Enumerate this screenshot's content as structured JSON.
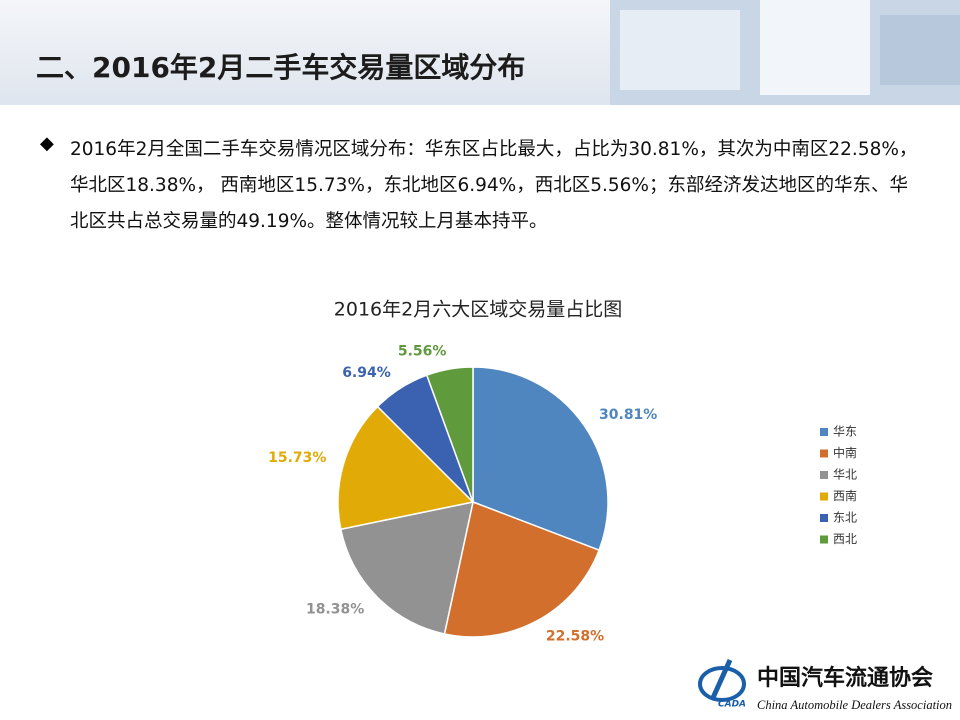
{
  "header": {
    "title": "二、2016年2月二手车交易量区域分布"
  },
  "bullet": "2016年2月全国二手车交易情况区域分布：华东区占比最大，占比为30.81%，其次为中南区22.58%，华北区18.38%， 西南地区15.73%，东北地区6.94%，西北区5.56%；东部经济发达地区的华东、华北区共占总交易量的49.19%。整体情况较上月基本持平。",
  "chart_data": {
    "type": "pie",
    "title": "2016年2月六大区域交易量占比图",
    "categories": [
      "华东",
      "中南",
      "华北",
      "西南",
      "东北",
      "西北"
    ],
    "values": [
      30.81,
      22.58,
      18.38,
      15.73,
      6.94,
      5.56
    ],
    "value_labels": [
      "30.81%",
      "22.58%",
      "18.38%",
      "15.73%",
      "6.94%",
      "5.56%"
    ],
    "colors": [
      "#4f86c0",
      "#d36f2c",
      "#929292",
      "#e2aa06",
      "#3b62b0",
      "#5f9a3d"
    ],
    "legend": "right"
  },
  "footer": {
    "logo": "CADA",
    "org_cn": "中国汽车流通协会",
    "org_en": "China Automobile Dealers Association"
  }
}
